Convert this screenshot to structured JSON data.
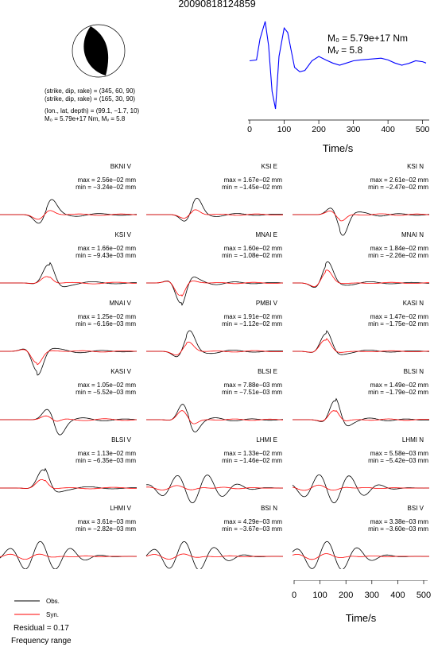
{
  "event_id": "20090818124859",
  "mechanism": {
    "line1": "(strike, dip, rake) = (345, 60, 90)",
    "line2": "(strike, dip, rake) = (165, 30, 90)",
    "line3": "(lon., lat, depth) = (99.1, −1.7, 10)",
    "line4": "M₀ = 5.79e+17 Nm, Mᵥ = 5.8",
    "strike": 345,
    "dip": 60,
    "rake": 90
  },
  "stf": {
    "m0_label": "M₀ = 5.79e+17 Nm",
    "mw_label": "Mᵥ = 5.8",
    "xlabel": "Time/s",
    "xticks": [
      "0",
      "100",
      "200",
      "300",
      "400",
      "500"
    ],
    "color": "#0000ff"
  },
  "bottom_axis": {
    "xlabel": "Time/s",
    "xticks": [
      "0",
      "100",
      "200",
      "300",
      "400",
      "500"
    ]
  },
  "legend": {
    "obs_label": "Obs.",
    "syn_label": "Syn.",
    "obs_color": "#000000",
    "syn_color": "#ff0000",
    "residual": "Residual = 0.17",
    "freq": "Frequency range"
  },
  "chart_data": [
    {
      "type": "line",
      "title": "",
      "xlabel": "Time/s",
      "xlim": [
        0,
        510
      ],
      "x": [
        0,
        20,
        30,
        45,
        55,
        65,
        75,
        85,
        100,
        110,
        120,
        130,
        145,
        160,
        180,
        200,
        220,
        240,
        260,
        280,
        300,
        320,
        350,
        380,
        400,
        420,
        440,
        460,
        480,
        500,
        510
      ],
      "series": [
        {
          "name": "source time function",
          "values": [
            0.1,
            0.12,
            0.6,
            1.0,
            0.45,
            -0.6,
            -1.0,
            0.2,
            0.85,
            0.75,
            0.35,
            -0.05,
            -0.15,
            -0.12,
            0.1,
            0.2,
            0.12,
            0.05,
            0.0,
            0.05,
            0.1,
            0.12,
            0.14,
            0.16,
            0.12,
            0.05,
            0.0,
            0.04,
            0.1,
            0.08,
            0.05
          ]
        }
      ]
    },
    {
      "type": "line",
      "title": "",
      "xlabel": "Time/s",
      "series_labels": [
        "Obs.",
        "Syn."
      ],
      "stations": [
        {
          "name": "BKNI V",
          "max": "max = 2.56e−02 mm",
          "min": "min = −3.24e−02 mm"
        },
        {
          "name": "KSI E",
          "max": "max = 1.67e−02 mm",
          "min": "min = −1.45e−02 mm"
        },
        {
          "name": "KSI N",
          "max": "max = 2.61e−02 mm",
          "min": "min = −2.47e−02 mm"
        },
        {
          "name": "KSI V",
          "max": "max = 1.66e−02 mm",
          "min": "min = −9.43e−03 mm"
        },
        {
          "name": "MNAI E",
          "max": "max = 1.60e−02 mm",
          "min": "min = −1.08e−02 mm"
        },
        {
          "name": "MNAI N",
          "max": "max = 1.84e−02 mm",
          "min": "min = −2.26e−02 mm"
        },
        {
          "name": "MNAI V",
          "max": "max = 1.25e−02 mm",
          "min": "min = −6.16e−03 mm"
        },
        {
          "name": "PMBI V",
          "max": "max = 1.91e−02 mm",
          "min": "min = −1.12e−02 mm"
        },
        {
          "name": "KASI N",
          "max": "max = 1.47e−02 mm",
          "min": "min = −1.75e−02 mm"
        },
        {
          "name": "KASI V",
          "max": "max = 1.05e−02 mm",
          "min": "min = −5.52e−03 mm"
        },
        {
          "name": "BLSI E",
          "max": "max = 7.88e−03 mm",
          "min": "min = −7.51e−03 mm"
        },
        {
          "name": "BLSI N",
          "max": "max = 1.49e−02 mm",
          "min": "min = −1.79e−02 mm"
        },
        {
          "name": "BLSI V",
          "max": "max = 1.13e−02 mm",
          "min": "min = −6.35e−03 mm"
        },
        {
          "name": "LHMI E",
          "max": "max = 1.33e−02 mm",
          "min": "min = −1.46e−02 mm"
        },
        {
          "name": "LHMI N",
          "max": "max = 5.58e−03 mm",
          "min": "min = −5.42e−03 mm"
        },
        {
          "name": "LHMI V",
          "max": "max = 3.61e−03 mm",
          "min": "min = −2.82e−03 mm"
        },
        {
          "name": "BSI N",
          "max": "max = 4.29e−03 mm",
          "min": "min = −3.67e−03 mm"
        },
        {
          "name": "BSI V",
          "max": "max = 3.38e−03 mm",
          "min": "min = −3.60e−03 mm"
        }
      ]
    }
  ]
}
